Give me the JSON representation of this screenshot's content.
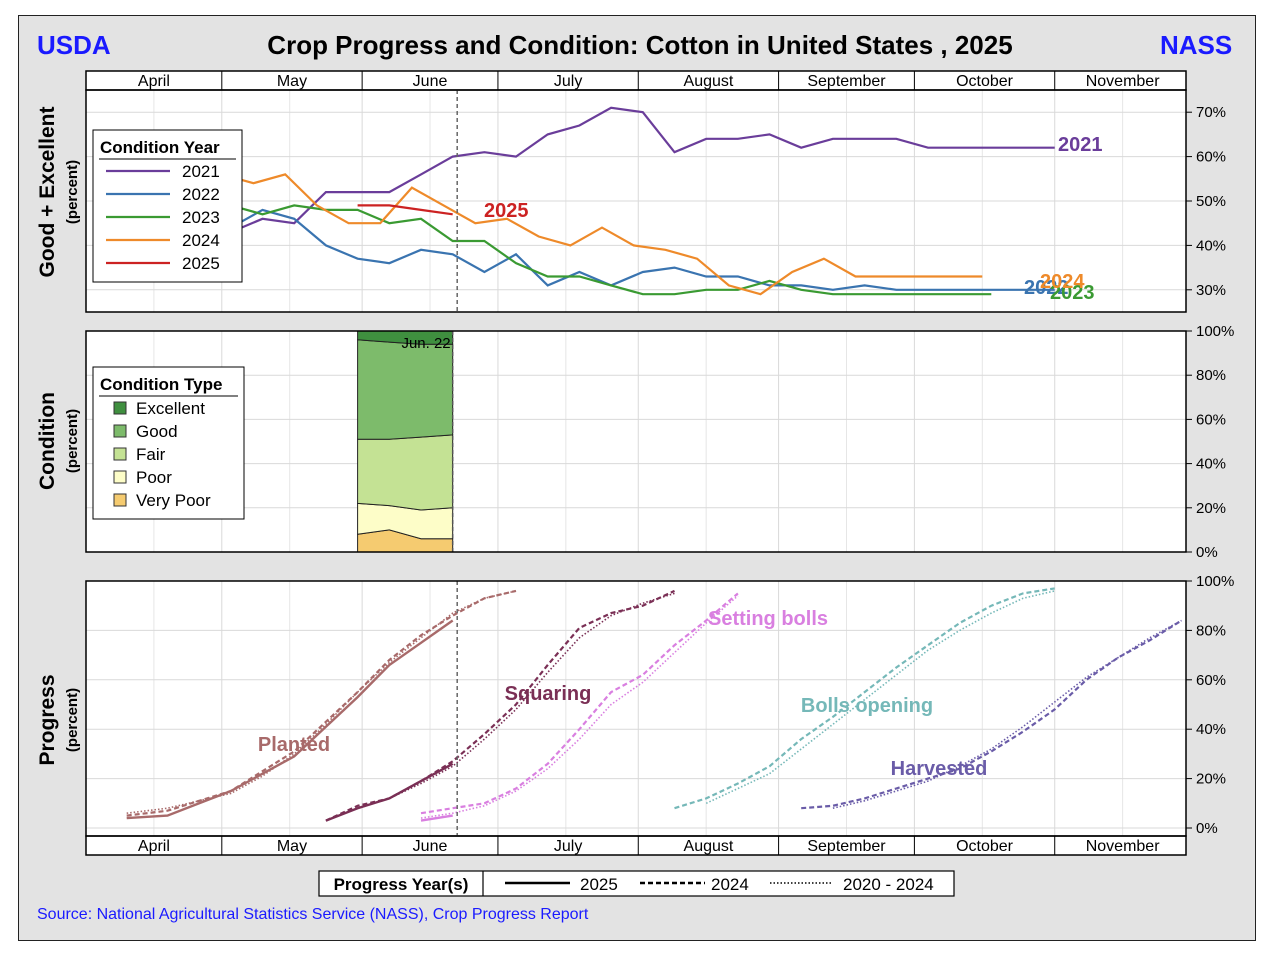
{
  "header": {
    "left_logo": "USDA",
    "title": "Crop Progress and Condition: Cotton in United States , 2025",
    "right_logo": "NASS"
  },
  "source": "Source: National Agricultural Statistics Service (NASS), Crop Progress Report",
  "colors": {
    "y2021": "#6a3d9a",
    "y2022": "#3a74b0",
    "y2023": "#3a9a32",
    "y2024": "#ee8a2a",
    "y2025": "#cc2222",
    "excellent": "#3f8f3f",
    "good": "#7dbb6b",
    "fair": "#c4e294",
    "poor": "#fdfdc8",
    "very_poor": "#f5cb70",
    "planted": "#a86a6a",
    "squaring": "#7a2f55",
    "setting_bolls": "#d97fe0",
    "bolls_opening": "#75b8b8",
    "harvested": "#6a5ca8"
  },
  "chart_data": [
    {
      "type": "line",
      "id": "good_excellent",
      "title": "Crop Progress and Condition: Cotton in United States , 2025",
      "ylabel": "Good + Excellent",
      "ylabel_sub": "(percent)",
      "month_labels": [
        "April",
        "May",
        "June",
        "July",
        "August",
        "September",
        "October",
        "November"
      ],
      "y_ticks": [
        "30%",
        "40%",
        "50%",
        "60%",
        "70%"
      ],
      "ylim": [
        25,
        75
      ],
      "xlim_day_of_year": [
        91,
        334
      ],
      "current_week_label": "Jun. 22",
      "current_week_day": 173,
      "legend_title": "Condition Year",
      "series": [
        {
          "name": "2021",
          "label": "2021",
          "x": [
            123,
            130,
            137,
            144,
            151,
            158,
            165,
            172,
            179,
            186,
            193,
            200,
            207,
            214,
            221,
            228,
            235,
            242,
            249,
            256,
            263,
            270,
            277,
            284,
            291,
            298,
            305
          ],
          "values": [
            43,
            46,
            45,
            52,
            52,
            52,
            56,
            60,
            61,
            60,
            65,
            67,
            71,
            70,
            61,
            64,
            64,
            65,
            62,
            64,
            64,
            64,
            62,
            62,
            62,
            62,
            62
          ]
        },
        {
          "name": "2022",
          "label": "2022",
          "x": [
            123,
            130,
            137,
            144,
            151,
            158,
            165,
            172,
            179,
            186,
            193,
            200,
            207,
            214,
            221,
            228,
            235,
            242,
            249,
            256,
            263,
            270,
            277,
            284,
            291,
            298,
            305
          ],
          "values": [
            44,
            48,
            46,
            40,
            37,
            36,
            39,
            38,
            34,
            38,
            31,
            34,
            31,
            34,
            35,
            33,
            33,
            31,
            31,
            30,
            31,
            30,
            30,
            30,
            30,
            30,
            30
          ]
        },
        {
          "name": "2023",
          "label": "2023",
          "x": [
            109,
            116,
            123,
            130,
            137,
            144,
            151,
            158,
            165,
            172,
            179,
            186,
            193,
            200,
            207,
            214,
            221,
            228,
            235,
            242,
            249,
            256,
            263,
            270,
            277,
            284,
            291
          ],
          "values": [
            48,
            51,
            49,
            47,
            49,
            48,
            48,
            45,
            46,
            41,
            41,
            36,
            33,
            33,
            31,
            29,
            29,
            30,
            30,
            32,
            30,
            29,
            29,
            29,
            29,
            29,
            29
          ]
        },
        {
          "name": "2024",
          "label": "2024",
          "x": [
            107,
            114,
            121,
            128,
            135,
            142,
            149,
            156,
            163,
            170,
            177,
            184,
            191,
            198,
            205,
            212,
            219,
            226,
            233,
            240,
            247,
            254,
            261,
            268,
            275,
            282,
            289
          ],
          "values": [
            60,
            61,
            56,
            54,
            56,
            49,
            45,
            45,
            53,
            49,
            45,
            46,
            42,
            40,
            44,
            40,
            39,
            37,
            31,
            29,
            34,
            37,
            33,
            33,
            33,
            33,
            33
          ]
        },
        {
          "name": "2025",
          "label": "2025",
          "x": [
            151,
            158,
            165,
            172
          ],
          "values": [
            49,
            49,
            48,
            47
          ]
        }
      ],
      "end_labels": [
        "2021",
        "2022",
        "2023",
        "2024",
        "2025"
      ]
    },
    {
      "type": "area",
      "id": "condition",
      "ylabel": "Condition",
      "ylabel_sub": "(percent)",
      "y_ticks": [
        "0%",
        "20%",
        "40%",
        "60%",
        "80%",
        "100%"
      ],
      "ylim": [
        0,
        100
      ],
      "legend_title": "Condition Type",
      "x": [
        151,
        158,
        165,
        172
      ],
      "categories": [
        "Excellent",
        "Good",
        "Fair",
        "Poor",
        "Very Poor"
      ],
      "cumulative_tops": {
        "very_poor": [
          8,
          10,
          6,
          6
        ],
        "poor": [
          22,
          21,
          19,
          20
        ],
        "fair": [
          51,
          51,
          52,
          53
        ],
        "good": [
          96,
          95,
          94,
          94
        ]
      },
      "annotation": "Jun. 22"
    },
    {
      "type": "line",
      "id": "progress",
      "ylabel": "Progress",
      "ylabel_sub": "(percent)",
      "y_ticks": [
        "0%",
        "20%",
        "40%",
        "60%",
        "80%",
        "100%"
      ],
      "ylim": [
        0,
        100
      ],
      "legend_title": "Progress Year(s)",
      "legend_items": [
        "2025",
        "2024",
        "2020 - 2024"
      ],
      "stages": [
        {
          "name": "Planted",
          "color_key": "planted",
          "y2025": {
            "x": [
              100,
              109,
              116,
              123,
              130,
              137,
              144,
              151,
              158,
              165,
              172
            ],
            "values": [
              4,
              5,
              10,
              15,
              22,
              29,
              41,
              53,
              66,
              75,
              84
            ]
          },
          "y2024": {
            "x": [
              100,
              109,
              116,
              123,
              130,
              137,
              144,
              151,
              158,
              165,
              172,
              179,
              186
            ],
            "values": [
              5,
              7,
              11,
              15,
              23,
              31,
              43,
              55,
              68,
              78,
              86,
              93,
              96
            ]
          },
          "avg": {
            "x": [
              100,
              109,
              116,
              123,
              130,
              137,
              144,
              151,
              158,
              165,
              172,
              179,
              186
            ],
            "values": [
              6,
              8,
              11,
              14,
              21,
              30,
              42,
              55,
              67,
              77,
              87,
              93,
              96
            ]
          }
        },
        {
          "name": "Squaring",
          "color_key": "squaring",
          "y2025": {
            "x": [
              144,
              151,
              158,
              165,
              172
            ],
            "values": [
              3,
              8,
              12,
              19,
              26
            ]
          },
          "y2024": {
            "x": [
              144,
              151,
              158,
              165,
              172,
              179,
              186,
              193,
              200,
              207,
              214,
              221
            ],
            "values": [
              3,
              9,
              12,
              19,
              27,
              38,
              50,
              66,
              81,
              87,
              90,
              96
            ]
          },
          "avg": {
            "x": [
              144,
              151,
              158,
              165,
              172,
              179,
              186,
              193,
              200,
              207,
              214,
              221
            ],
            "values": [
              3,
              8,
              12,
              18,
              25,
              36,
              48,
              63,
              77,
              86,
              91,
              95
            ]
          }
        },
        {
          "name": "Setting bolls",
          "color_key": "setting_bolls",
          "y2025": {
            "x": [
              165,
              172
            ],
            "values": [
              3,
              5
            ]
          },
          "y2024": {
            "x": [
              165,
              172,
              179,
              186,
              193,
              200,
              207,
              214,
              221,
              228,
              235
            ],
            "values": [
              6,
              8,
              10,
              16,
              26,
              40,
              55,
              62,
              74,
              84,
              95
            ]
          },
          "avg": {
            "x": [
              165,
              172,
              179,
              186,
              193,
              200,
              207,
              214,
              221,
              228,
              235
            ],
            "values": [
              4,
              6,
              9,
              15,
              24,
              36,
              50,
              59,
              71,
              83,
              94
            ]
          }
        },
        {
          "name": "Bolls opening",
          "color_key": "bolls_opening",
          "y2024": {
            "x": [
              221,
              228,
              235,
              242,
              249,
              256,
              263,
              270,
              277,
              284,
              291,
              298,
              305
            ],
            "values": [
              8,
              12,
              18,
              25,
              36,
              45,
              55,
              65,
              74,
              83,
              90,
              95,
              97
            ]
          },
          "avg": {
            "x": [
              228,
              235,
              242,
              249,
              256,
              263,
              270,
              277,
              284,
              291,
              298,
              305
            ],
            "values": [
              10,
              16,
              22,
              32,
              42,
              52,
              62,
              72,
              80,
              87,
              93,
              96
            ]
          }
        },
        {
          "name": "Harvested",
          "color_key": "harvested",
          "y2024": {
            "x": [
              249,
              256,
              263,
              270,
              277,
              284,
              291,
              298,
              305,
              312,
              319,
              326,
              333
            ],
            "values": [
              8,
              9,
              12,
              16,
              20,
              24,
              31,
              39,
              48,
              60,
              69,
              76,
              84
            ]
          },
          "avg": {
            "x": [
              256,
              263,
              270,
              277,
              284,
              291,
              298,
              305,
              312,
              319,
              326,
              333
            ],
            "values": [
              8,
              11,
              15,
              19,
              25,
              32,
              41,
              51,
              61,
              69,
              77,
              84
            ]
          }
        }
      ]
    }
  ]
}
